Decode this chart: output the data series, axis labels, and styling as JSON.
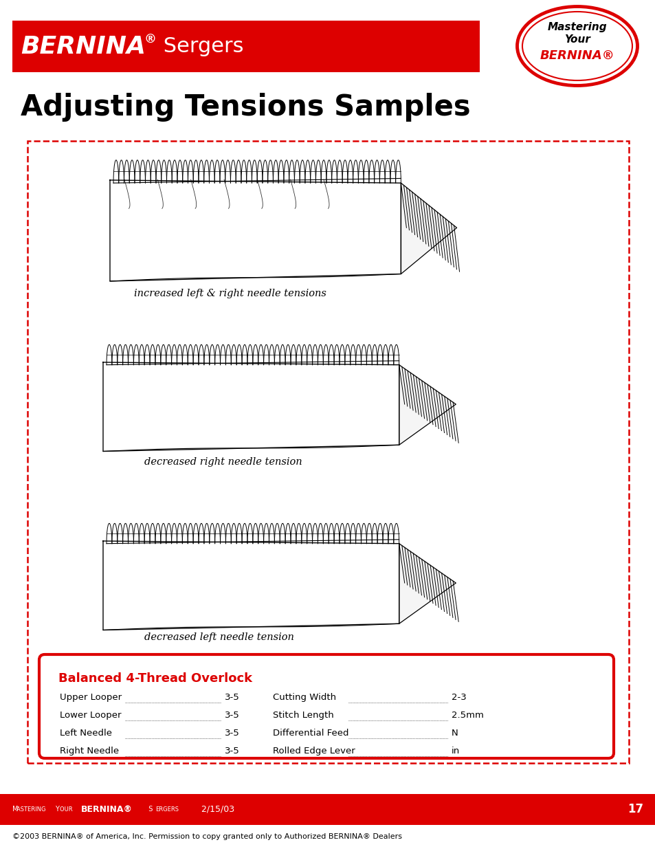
{
  "page_bg": "#ffffff",
  "header_bar_color": "#dd0000",
  "logo_ellipse_color": "#dd0000",
  "title_text": "Adjusting Tensions Samples",
  "dashed_color": "#dd0000",
  "caption1": "increased left & right needle tensions",
  "caption2": "decreased right needle tension",
  "caption3": "decreased left needle tension",
  "info_box_color": "#dd0000",
  "info_title": "Balanced 4-Thread Overlock",
  "left_labels": [
    "Upper Looper",
    "Lower Looper",
    "Left Needle",
    "Right Needle"
  ],
  "left_values": [
    "3-5",
    "3-5",
    "3-5",
    "3-5"
  ],
  "right_labels": [
    "Cutting Width",
    "Stitch Length",
    "Differential Feed",
    "Rolled Edge Lever"
  ],
  "right_values": [
    "2-3",
    "2.5mm",
    "N",
    "in"
  ],
  "footer_bar_color": "#dd0000",
  "footer_page": "17",
  "copyright_text": "©2003 BERNINA® of America, Inc. Permission to copy granted only to Authorized BERNINA® Dealers"
}
